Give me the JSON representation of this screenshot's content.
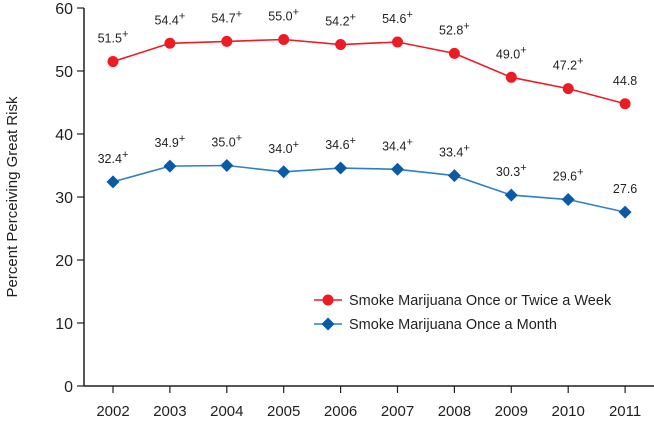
{
  "chart_data": {
    "type": "line",
    "title": "",
    "xlabel": "",
    "ylabel": "Percent Perceiving Great Risk",
    "ylim": [
      0,
      60
    ],
    "yticks": [
      0,
      10,
      20,
      30,
      40,
      50,
      60
    ],
    "categories": [
      "2002",
      "2003",
      "2004",
      "2005",
      "2006",
      "2007",
      "2008",
      "2009",
      "2010",
      "2011"
    ],
    "grid": false,
    "legend_position": "bottom-right",
    "series": [
      {
        "name": "Smoke Marijuana Once or Twice a Week",
        "color": "#ed1c24",
        "marker": "circle",
        "values": [
          51.5,
          54.4,
          54.7,
          55.0,
          54.2,
          54.6,
          52.8,
          49.0,
          47.2,
          44.8
        ],
        "labels": [
          "51.5",
          "54.4",
          "54.7",
          "55.0",
          "54.2",
          "54.6",
          "52.8",
          "49.0",
          "47.2",
          "44.8"
        ],
        "significant": [
          true,
          true,
          true,
          true,
          true,
          true,
          true,
          true,
          true,
          false
        ]
      },
      {
        "name": "Smoke Marijuana Once a Month",
        "color": "#0a5aa5",
        "line_color": "#2f7fc8",
        "marker": "diamond",
        "values": [
          32.4,
          34.9,
          35.0,
          34.0,
          34.6,
          34.4,
          33.4,
          30.3,
          29.6,
          27.6
        ],
        "labels": [
          "32.4",
          "34.9",
          "35.0",
          "34.0",
          "34.6",
          "34.4",
          "33.4",
          "30.3",
          "29.6",
          "27.6"
        ],
        "significant": [
          true,
          true,
          true,
          true,
          true,
          true,
          true,
          true,
          true,
          false
        ]
      }
    ],
    "significance_marker": "+"
  }
}
